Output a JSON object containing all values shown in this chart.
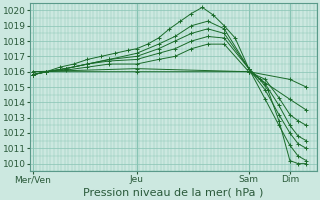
{
  "background_color": "#cce8e0",
  "plot_bg_color": "#cce8e0",
  "grid_color": "#88c4b4",
  "line_color": "#1a6b2a",
  "marker_color": "#1a6b2a",
  "ylim": [
    1009.5,
    1020.5
  ],
  "yticks": [
    1010,
    1011,
    1012,
    1013,
    1014,
    1015,
    1016,
    1017,
    1018,
    1019,
    1020
  ],
  "xlabel": "Pression niveau de la mer( hPa )",
  "xlabel_fontsize": 8,
  "tick_fontsize": 6.5,
  "xtick_labels": [
    "Mer/Ven",
    "Jeu",
    "Sam",
    "Dim"
  ],
  "xtick_positions": [
    0.0,
    0.38,
    0.79,
    0.94
  ],
  "lines": [
    {
      "x": [
        0.0,
        0.05,
        0.1,
        0.15,
        0.2,
        0.25,
        0.3,
        0.35,
        0.38,
        0.42,
        0.46,
        0.5,
        0.54,
        0.58,
        0.62,
        0.66,
        0.7,
        0.74,
        0.79,
        0.83,
        0.86,
        0.9,
        0.94,
        0.97,
        1.0
      ],
      "y": [
        1015.8,
        1016.0,
        1016.3,
        1016.5,
        1016.8,
        1017.0,
        1017.2,
        1017.4,
        1017.5,
        1017.8,
        1018.2,
        1018.8,
        1019.3,
        1019.8,
        1020.2,
        1019.7,
        1019.0,
        1018.2,
        1016.2,
        1015.5,
        1014.8,
        1012.8,
        1010.2,
        1010.0,
        1010.0
      ]
    },
    {
      "x": [
        0.0,
        0.05,
        0.12,
        0.2,
        0.28,
        0.38,
        0.46,
        0.52,
        0.58,
        0.64,
        0.7,
        0.79,
        0.85,
        0.9,
        0.94,
        0.97,
        1.0
      ],
      "y": [
        1015.8,
        1016.0,
        1016.2,
        1016.5,
        1016.8,
        1017.2,
        1017.8,
        1018.3,
        1019.0,
        1019.3,
        1018.8,
        1016.2,
        1014.2,
        1012.5,
        1011.2,
        1010.5,
        1010.2
      ]
    },
    {
      "x": [
        0.0,
        0.05,
        0.12,
        0.2,
        0.28,
        0.38,
        0.46,
        0.52,
        0.58,
        0.64,
        0.7,
        0.79,
        0.85,
        0.9,
        0.94,
        0.97,
        1.0
      ],
      "y": [
        1015.8,
        1016.0,
        1016.2,
        1016.5,
        1016.8,
        1017.0,
        1017.5,
        1018.0,
        1018.5,
        1018.8,
        1018.5,
        1016.2,
        1014.8,
        1013.2,
        1012.0,
        1011.3,
        1011.0
      ]
    },
    {
      "x": [
        0.0,
        0.05,
        0.12,
        0.2,
        0.28,
        0.38,
        0.46,
        0.52,
        0.58,
        0.64,
        0.7,
        0.79,
        0.85,
        0.9,
        0.94,
        0.97,
        1.0
      ],
      "y": [
        1015.8,
        1016.0,
        1016.2,
        1016.5,
        1016.7,
        1016.8,
        1017.2,
        1017.5,
        1018.0,
        1018.3,
        1018.2,
        1016.2,
        1015.2,
        1013.8,
        1012.5,
        1011.8,
        1011.5
      ]
    },
    {
      "x": [
        0.0,
        0.05,
        0.12,
        0.2,
        0.28,
        0.38,
        0.46,
        0.52,
        0.58,
        0.64,
        0.7,
        0.79,
        0.85,
        0.9,
        0.94,
        0.97,
        1.0
      ],
      "y": [
        1015.8,
        1016.0,
        1016.1,
        1016.3,
        1016.5,
        1016.5,
        1016.8,
        1017.0,
        1017.5,
        1017.8,
        1017.8,
        1016.0,
        1015.5,
        1014.3,
        1013.2,
        1012.8,
        1012.5
      ]
    },
    {
      "x": [
        0.0,
        0.38,
        0.79,
        0.94,
        1.0
      ],
      "y": [
        1016.0,
        1016.2,
        1016.0,
        1014.2,
        1013.5
      ]
    },
    {
      "x": [
        0.0,
        0.38,
        0.79,
        0.94,
        1.0
      ],
      "y": [
        1016.0,
        1016.0,
        1016.0,
        1015.5,
        1015.0
      ]
    }
  ]
}
